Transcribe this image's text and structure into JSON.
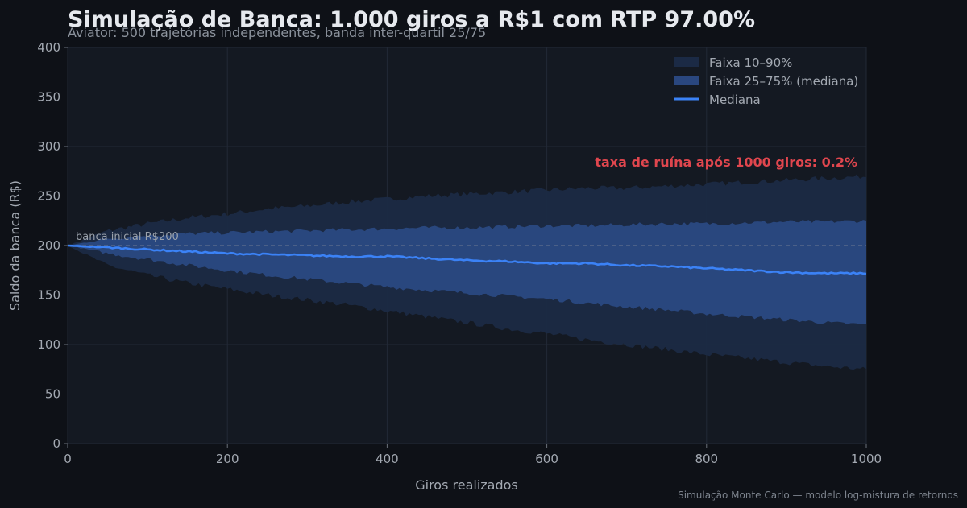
{
  "chart_data": {
    "type": "area",
    "title": "Simulação de Banca: 1.000 giros a R$1 com RTP 97.00%",
    "subtitle": "Aviator: 500 trajetórias independentes, banda inter-quartil 25/75",
    "xlabel": "Giros realizados",
    "ylabel": "Saldo da banca (R$)",
    "xlim": [
      0,
      1000
    ],
    "ylim": [
      0,
      400
    ],
    "x_ticks": [
      "0",
      "200",
      "400",
      "600",
      "800",
      "1000"
    ],
    "y_ticks": [
      "0",
      "50",
      "100",
      "150",
      "200",
      "250",
      "300",
      "350",
      "400"
    ],
    "grid": true,
    "legend_position": "top-right",
    "series": [
      {
        "name": "Faixa 10–90%",
        "kind": "band",
        "color": "#1b2a45",
        "x": [
          0,
          50,
          100,
          150,
          200,
          250,
          300,
          350,
          400,
          450,
          500,
          550,
          600,
          650,
          700,
          750,
          800,
          850,
          900,
          950,
          1000
        ],
        "upper": [
          200,
          215,
          222,
          228,
          232,
          237,
          240,
          244,
          247,
          250,
          252,
          254,
          256,
          258,
          258,
          260,
          262,
          264,
          266,
          268,
          270
        ],
        "lower": [
          200,
          180,
          170,
          162,
          156,
          150,
          145,
          140,
          134,
          128,
          122,
          116,
          111,
          105,
          100,
          95,
          90,
          86,
          82,
          78,
          75
        ]
      },
      {
        "name": "Faixa 25–75% (mediana)",
        "kind": "band",
        "color": "#2b4a85",
        "x": [
          0,
          50,
          100,
          150,
          200,
          250,
          300,
          350,
          400,
          450,
          500,
          550,
          600,
          650,
          700,
          750,
          800,
          850,
          900,
          950,
          1000
        ],
        "upper": [
          200,
          207,
          210,
          212,
          213,
          214,
          215,
          216,
          217,
          218,
          218,
          219,
          220,
          220,
          221,
          222,
          222,
          223,
          224,
          224,
          225
        ],
        "lower": [
          200,
          192,
          186,
          180,
          175,
          170,
          166,
          162,
          158,
          155,
          152,
          149,
          146,
          142,
          138,
          135,
          131,
          128,
          125,
          122,
          120
        ]
      },
      {
        "name": "Mediana",
        "kind": "line",
        "color": "#3b82f6",
        "x": [
          0,
          50,
          100,
          150,
          200,
          250,
          300,
          350,
          400,
          450,
          500,
          550,
          600,
          650,
          700,
          750,
          800,
          850,
          900,
          950,
          1000
        ],
        "values": [
          200,
          198,
          196,
          194,
          192,
          191,
          190,
          189,
          189,
          187,
          185,
          184,
          182,
          182,
          180,
          179,
          177,
          175,
          173,
          172,
          172
        ]
      }
    ],
    "reference_line": {
      "y": 200,
      "label": "banca inicial R$200",
      "color": "#8a909a"
    },
    "annotation": {
      "text": "taxa de ruína após 1000 giros: 0.2%",
      "color": "#e0464e"
    },
    "footer": "Simulação Monte Carlo — modelo log-mistura de retornos"
  }
}
